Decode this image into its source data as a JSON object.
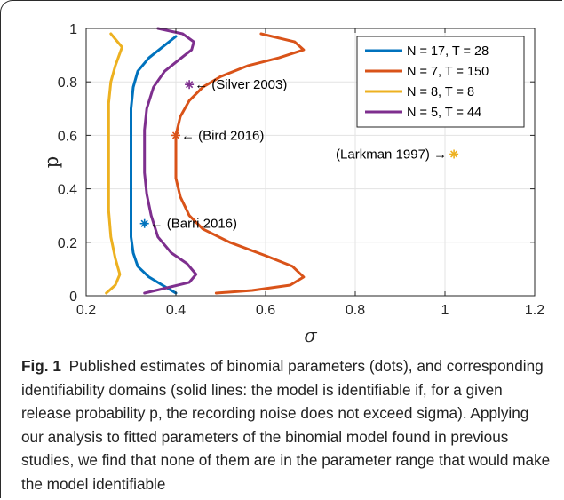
{
  "chart_data": {
    "type": "line",
    "xlabel": "σ",
    "ylabel": "p",
    "xlim": [
      0.2,
      1.2
    ],
    "ylim": [
      0,
      1
    ],
    "xticks": [
      0.2,
      0.4,
      0.6,
      0.8,
      1,
      1.2
    ],
    "yticks": [
      0,
      0.2,
      0.4,
      0.6,
      0.8,
      1
    ],
    "xtick_labels": [
      "0.2",
      "0.4",
      "0.6",
      "0.8",
      "1",
      "1.2"
    ],
    "ytick_labels": [
      "0",
      "0.2",
      "0.4",
      "0.6",
      "0.8",
      "1"
    ],
    "grid": true,
    "legend_position": "top-right",
    "series": [
      {
        "name": "N = 17, T = 28",
        "color": "#0072BD",
        "x": [
          0.4,
          0.37,
          0.34,
          0.315,
          0.305,
          0.3,
          0.3,
          0.3,
          0.3,
          0.3,
          0.3,
          0.305,
          0.315,
          0.34,
          0.37,
          0.4
        ],
        "y": [
          0.01,
          0.04,
          0.07,
          0.11,
          0.16,
          0.22,
          0.3,
          0.4,
          0.5,
          0.6,
          0.7,
          0.78,
          0.84,
          0.89,
          0.93,
          0.97
        ]
      },
      {
        "name": "N = 7, T = 150",
        "color": "#D95319",
        "x": [
          0.49,
          0.57,
          0.655,
          0.685,
          0.66,
          0.6,
          0.52,
          0.46,
          0.43,
          0.41,
          0.4,
          0.4,
          0.4,
          0.41,
          0.43,
          0.46,
          0.5,
          0.56,
          0.63,
          0.685,
          0.665,
          0.59
        ],
        "y": [
          0.01,
          0.02,
          0.04,
          0.07,
          0.11,
          0.15,
          0.2,
          0.25,
          0.3,
          0.37,
          0.44,
          0.52,
          0.6,
          0.67,
          0.73,
          0.78,
          0.82,
          0.86,
          0.89,
          0.92,
          0.95,
          0.98
        ]
      },
      {
        "name": "N = 8, T = 8",
        "color": "#EDB120",
        "x": [
          0.245,
          0.265,
          0.275,
          0.265,
          0.255,
          0.25,
          0.25,
          0.25,
          0.25,
          0.25,
          0.255,
          0.265,
          0.28,
          0.255
        ],
        "y": [
          0.01,
          0.04,
          0.08,
          0.14,
          0.22,
          0.32,
          0.42,
          0.52,
          0.62,
          0.72,
          0.8,
          0.86,
          0.93,
          0.98
        ]
      },
      {
        "name": "N = 5, T = 44",
        "color": "#7E2F8E",
        "x": [
          0.33,
          0.38,
          0.43,
          0.445,
          0.425,
          0.39,
          0.36,
          0.345,
          0.335,
          0.33,
          0.33,
          0.33,
          0.335,
          0.35,
          0.375,
          0.405,
          0.435,
          0.44,
          0.415,
          0.36
        ],
        "y": [
          0.01,
          0.03,
          0.05,
          0.08,
          0.12,
          0.16,
          0.22,
          0.3,
          0.38,
          0.46,
          0.54,
          0.62,
          0.7,
          0.78,
          0.84,
          0.88,
          0.92,
          0.95,
          0.98,
          1.0
        ]
      }
    ],
    "points": [
      {
        "label": "(Silver 2003)",
        "x": 0.43,
        "y": 0.79,
        "color": "#7E2F8E",
        "arrow": "←",
        "side": "right"
      },
      {
        "label": "(Bird 2016)",
        "x": 0.4,
        "y": 0.6,
        "color": "#D95319",
        "arrow": "←",
        "side": "right"
      },
      {
        "label": "(Larkman 1997)",
        "x": 1.02,
        "y": 0.53,
        "color": "#EDB120",
        "arrow": "→",
        "side": "left"
      },
      {
        "label": "(Barri 2016)",
        "x": 0.33,
        "y": 0.27,
        "color": "#0072BD",
        "arrow": "←",
        "side": "right"
      }
    ]
  },
  "caption": {
    "label": "Fig. 1",
    "text": "Published estimates of binomial parameters (dots), and corresponding identifiability domains (solid lines: the model is identifiable if, for a given release probability p, the recording noise does not exceed sigma). Applying our analysis to fitted parameters of the binomial model found in previous studies, we find that none of them are in the parameter range that would make the model identifiable"
  }
}
